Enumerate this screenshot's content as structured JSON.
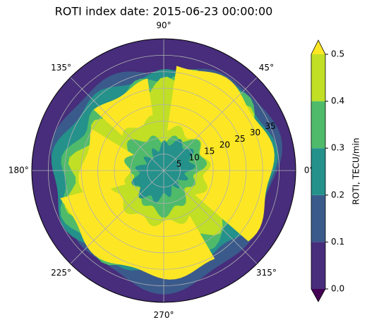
{
  "chart_data": {
    "type": "polar-contour",
    "title": "ROTI index date: 2015-06-23 00:00:00",
    "colorbar_label": "ROTI, TECU/min",
    "levels": [
      {
        "value": 0,
        "label": "0.0"
      },
      {
        "value": 0.1,
        "label": "0.1"
      },
      {
        "value": 0.2,
        "label": "0.2"
      },
      {
        "value": 0.3,
        "label": "0.3"
      },
      {
        "value": 0.4,
        "label": "0.4"
      },
      {
        "value": 0.5,
        "label": "0.5"
      }
    ],
    "band_colors": [
      "#472d7b",
      "#3b5a8c",
      "#24918b",
      "#4fbb6a",
      "#c0df25"
    ],
    "under_color": "#440154",
    "over_color": "#fde725",
    "rlim": [
      0,
      40
    ],
    "rticks": [
      5,
      10,
      15,
      20,
      25,
      30,
      35
    ],
    "thetaticks": [
      {
        "value": 0,
        "label": "0°"
      },
      {
        "value": 45,
        "label": "45°"
      },
      {
        "value": 90,
        "label": "90°"
      },
      {
        "value": 135,
        "label": "135°"
      },
      {
        "value": 180,
        "label": "180°"
      },
      {
        "value": 225,
        "label": "225°"
      },
      {
        "value": 270,
        "label": "270°"
      },
      {
        "value": 315,
        "label": "315°"
      }
    ],
    "grid": true
  }
}
